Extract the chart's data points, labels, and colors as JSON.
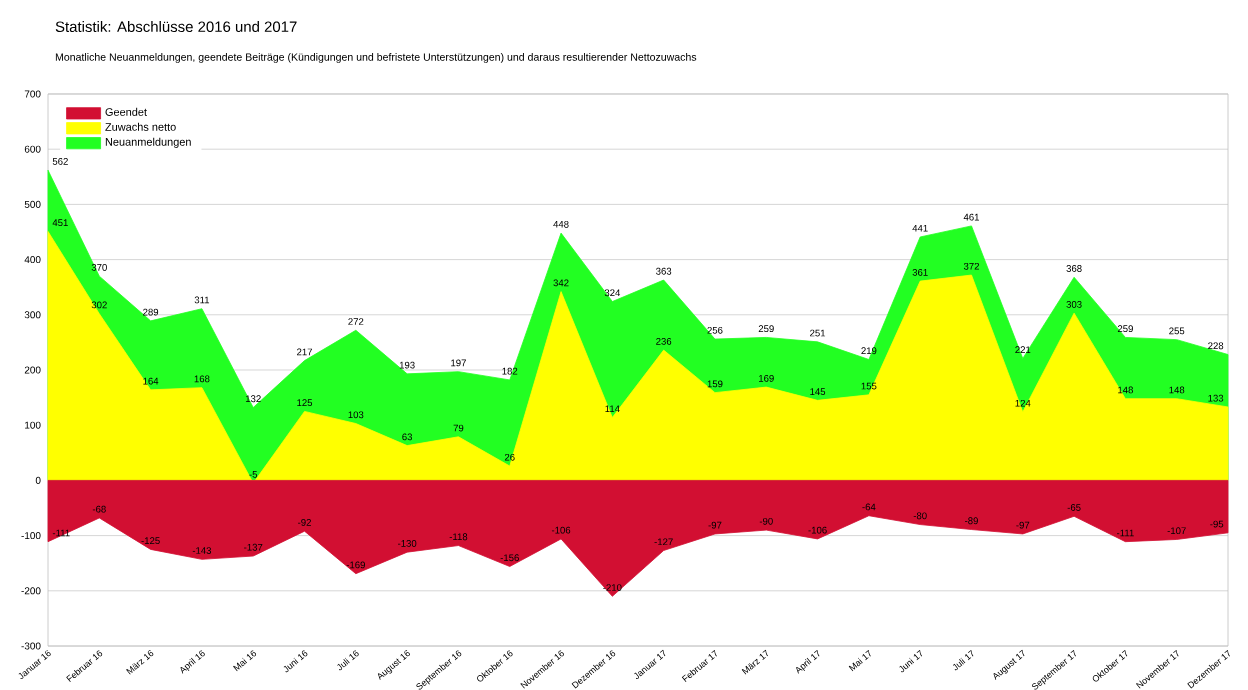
{
  "chart_data": {
    "type": "area",
    "title": "Statistik: Abschlüsse 2016 und 2017",
    "subtitle": "Monatliche Neuanmeldungen, geendete Beiträge (Kündigungen und befristete Unterstützungen) und daraus resultierender Nettozuwachs",
    "categories": [
      "Januar 16",
      "Februar 16",
      "März 16",
      "April 16",
      "Mai 16",
      "Juni 16",
      "Juli 16",
      "August 16",
      "September 16",
      "Oktober 16",
      "November 16",
      "Dezember 16",
      "Januar 17",
      "Februar 17",
      "März 17",
      "April 17",
      "Mai 17",
      "Juni 17",
      "Juli 17",
      "August 17",
      "September 17",
      "Oktober 17",
      "November 17",
      "Dezember 17"
    ],
    "series": [
      {
        "name": "Geendet",
        "color": "#d20f32",
        "values": [
          -111,
          -68,
          -125,
          -143,
          -137,
          -92,
          -169,
          -130,
          -118,
          -156,
          -106,
          -210,
          -127,
          -97,
          -90,
          -106,
          -64,
          -80,
          -89,
          -97,
          -65,
          -111,
          -107,
          -95
        ]
      },
      {
        "name": "Zuwachs netto",
        "color": "#ffff00",
        "values": [
          451,
          302,
          164,
          168,
          -5,
          125,
          103,
          63,
          79,
          26,
          342,
          114,
          236,
          159,
          169,
          145,
          155,
          361,
          372,
          124,
          303,
          148,
          148,
          133
        ]
      },
      {
        "name": "Neuanmeldungen",
        "color": "#22ff22",
        "values": [
          562,
          370,
          289,
          311,
          132,
          217,
          272,
          193,
          197,
          182,
          448,
          324,
          363,
          256,
          259,
          251,
          219,
          441,
          461,
          221,
          368,
          259,
          255,
          228
        ]
      }
    ],
    "ylim": [
      -300,
      700
    ],
    "yticks": [
      -300,
      -200,
      -100,
      0,
      100,
      200,
      300,
      400,
      500,
      600,
      700
    ],
    "grid": "y",
    "legend": "top left",
    "data_labels": true
  }
}
